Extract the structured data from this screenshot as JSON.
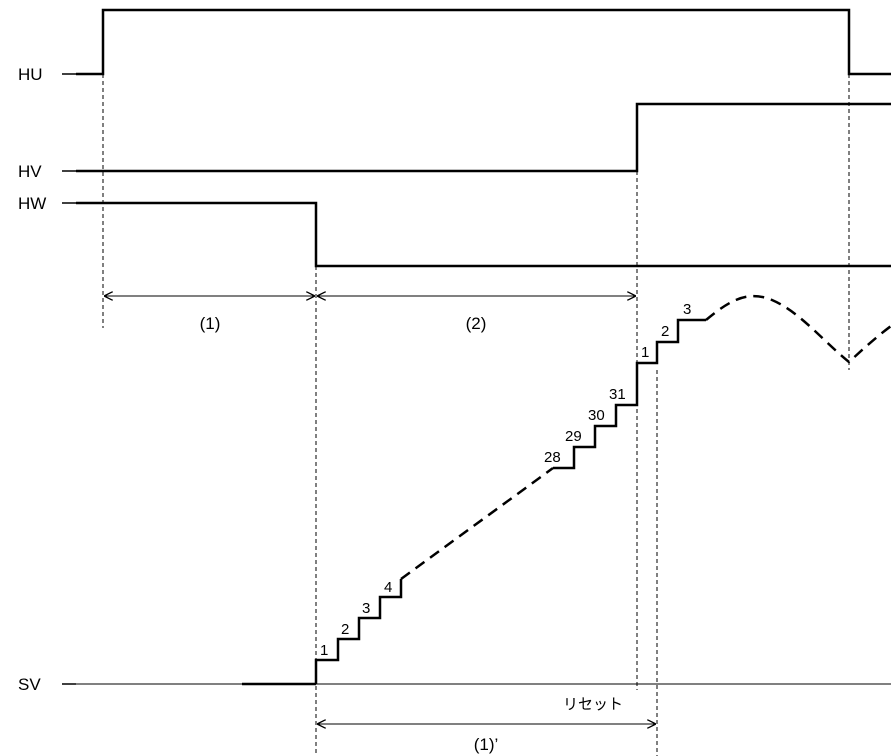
{
  "signals": {
    "hu": "HU",
    "hv": "HV",
    "hw": "HW",
    "sv": "SV"
  },
  "intervals": {
    "p1": "(1)",
    "p2": "(2)",
    "p1prime": "(1)’"
  },
  "steps_first": [
    "1",
    "2",
    "3",
    "4"
  ],
  "steps_last": [
    "28",
    "29",
    "30",
    "31"
  ],
  "steps_next": [
    "1",
    "2",
    "3"
  ],
  "reset_label": "リセット"
}
